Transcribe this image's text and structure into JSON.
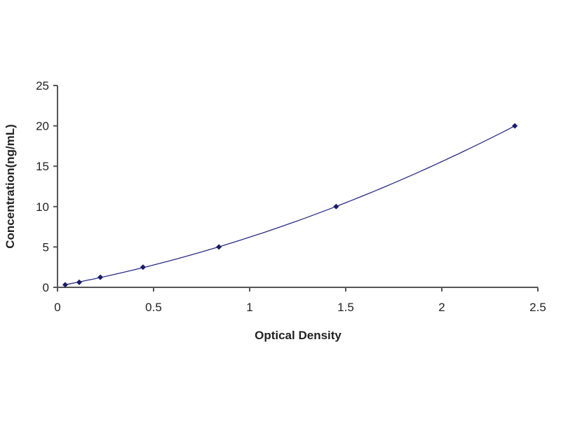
{
  "chart_data": {
    "type": "scatter",
    "title": "",
    "xlabel": "Optical Density",
    "ylabel": "Concentration(ng/mL)",
    "xlim": [
      0,
      2.5
    ],
    "ylim": [
      0,
      25
    ],
    "xticks": [
      "0",
      "0.5",
      "1",
      "1.5",
      "2",
      "2.5"
    ],
    "yticks": [
      "0",
      "5",
      "10",
      "15",
      "20",
      "25"
    ],
    "grid": false,
    "legend": "none",
    "series": [
      {
        "x": [
          0.04,
          0.113,
          0.223,
          0.445,
          0.84,
          1.45,
          2.38
        ],
        "y": [
          0.312,
          0.625,
          1.25,
          2.5,
          5,
          10,
          20
        ],
        "marker_color": "#1a1a6e",
        "line_color": "#2a2a8a",
        "fit": "smooth curve"
      }
    ]
  }
}
